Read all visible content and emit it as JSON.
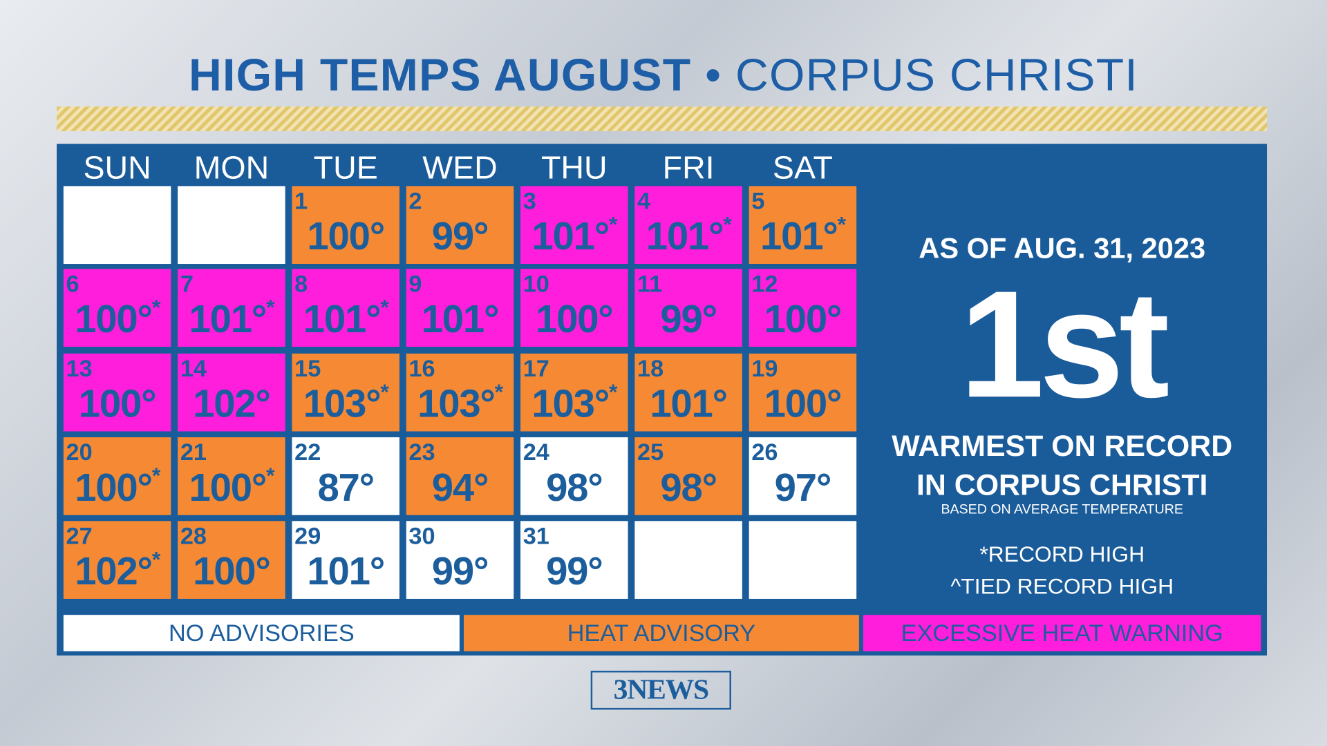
{
  "title": {
    "bold": "HIGH TEMPS AUGUST",
    "separator": "•",
    "light": "CORPUS CHRISTI"
  },
  "colors": {
    "none": "#ffffff",
    "heat": "#f68a34",
    "excessive": "#ff1edb",
    "text": "#1c5d9c",
    "panel": "#1a5b99"
  },
  "days": [
    "SUN",
    "MON",
    "TUE",
    "WED",
    "THU",
    "FRI",
    "SAT"
  ],
  "calendar": [
    [
      null,
      null,
      {
        "day": "1",
        "temp": "100°",
        "mark": "",
        "level": "heat"
      },
      {
        "day": "2",
        "temp": "99°",
        "mark": "",
        "level": "heat"
      },
      {
        "day": "3",
        "temp": "101°",
        "mark": "*",
        "level": "excessive"
      },
      {
        "day": "4",
        "temp": "101°",
        "mark": "*",
        "level": "excessive"
      },
      {
        "day": "5",
        "temp": "101°",
        "mark": "*",
        "level": "heat"
      }
    ],
    [
      {
        "day": "6",
        "temp": "100°",
        "mark": "*",
        "level": "excessive"
      },
      {
        "day": "7",
        "temp": "101°",
        "mark": "*",
        "level": "excessive"
      },
      {
        "day": "8",
        "temp": "101°",
        "mark": "*",
        "level": "excessive"
      },
      {
        "day": "9",
        "temp": "101°",
        "mark": "",
        "level": "excessive"
      },
      {
        "day": "10",
        "temp": "100°",
        "mark": "",
        "level": "excessive"
      },
      {
        "day": "11",
        "temp": "99°",
        "mark": "",
        "level": "excessive"
      },
      {
        "day": "12",
        "temp": "100°",
        "mark": "",
        "level": "excessive"
      }
    ],
    [
      {
        "day": "13",
        "temp": "100°",
        "mark": "",
        "level": "excessive"
      },
      {
        "day": "14",
        "temp": "102°",
        "mark": "",
        "level": "excessive"
      },
      {
        "day": "15",
        "temp": "103°",
        "mark": "*",
        "level": "heat"
      },
      {
        "day": "16",
        "temp": "103°",
        "mark": "*",
        "level": "heat"
      },
      {
        "day": "17",
        "temp": "103°",
        "mark": "*",
        "level": "heat"
      },
      {
        "day": "18",
        "temp": "101°",
        "mark": "",
        "level": "heat"
      },
      {
        "day": "19",
        "temp": "100°",
        "mark": "",
        "level": "heat"
      }
    ],
    [
      {
        "day": "20",
        "temp": "100°",
        "mark": "*",
        "level": "heat"
      },
      {
        "day": "21",
        "temp": "100°",
        "mark": "*",
        "level": "heat"
      },
      {
        "day": "22",
        "temp": "87°",
        "mark": "",
        "level": "none"
      },
      {
        "day": "23",
        "temp": "94°",
        "mark": "",
        "level": "heat"
      },
      {
        "day": "24",
        "temp": "98°",
        "mark": "",
        "level": "none"
      },
      {
        "day": "25",
        "temp": "98°",
        "mark": "",
        "level": "heat"
      },
      {
        "day": "26",
        "temp": "97°",
        "mark": "",
        "level": "none"
      }
    ],
    [
      {
        "day": "27",
        "temp": "102°",
        "mark": "*",
        "level": "heat"
      },
      {
        "day": "28",
        "temp": "100°",
        "mark": "",
        "level": "heat"
      },
      {
        "day": "29",
        "temp": "101°",
        "mark": "",
        "level": "none"
      },
      {
        "day": "30",
        "temp": "99°",
        "mark": "",
        "level": "none"
      },
      {
        "day": "31",
        "temp": "99°",
        "mark": "",
        "level": "none"
      },
      null,
      null
    ]
  ],
  "summary": {
    "as_of": "AS OF AUG. 31, 2023",
    "rank": "1st",
    "line1": "WARMEST ON RECORD",
    "line2": "IN CORPUS CHRISTI",
    "basis": "BASED ON AVERAGE TEMPERATURE",
    "note1": "*RECORD HIGH",
    "note2": "^TIED RECORD HIGH"
  },
  "legend": [
    "NO ADVISORIES",
    "HEAT ADVISORY",
    "EXCESSIVE HEAT WARNING"
  ],
  "logo": "3NEWS"
}
